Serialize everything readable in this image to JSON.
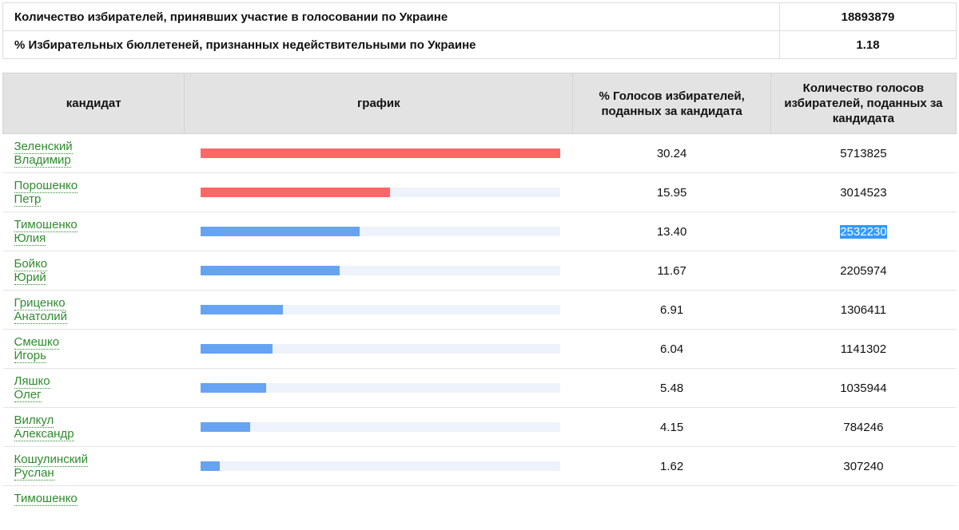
{
  "summary": {
    "voters_label": "Количество избирателей, принявших участие в голосовании по Украине",
    "voters_value": "18893879",
    "invalid_label": "% Избирательных бюллетеней, признанных недействительными по Украине",
    "invalid_value": "1.18"
  },
  "table": {
    "headers": {
      "candidate": "кандидат",
      "graph": "график",
      "percent": "% Голосов избирателей, поданных за кандидата",
      "count": "Количество голосов избирателей, поданных за кандидата"
    },
    "max_percent": 30.24,
    "colors": {
      "leader": "#ff6666",
      "other": "#66a3f2",
      "track": "#eef2fb",
      "link": "#2e8b2e",
      "selection": "#3399ff"
    },
    "rows": [
      {
        "surname": "Зеленский",
        "first_name": "Владимир",
        "percent": "30.24",
        "votes": "5713825",
        "bar_color": "#ff6666",
        "fill": 30.24
      },
      {
        "surname": "Порошенко",
        "first_name": "Петр",
        "percent": "15.95",
        "votes": "3014523",
        "bar_color": "#ff6666",
        "fill": 15.95
      },
      {
        "surname": "Тимошенко",
        "first_name": "Юлия",
        "percent": "13.40",
        "votes": "2532230",
        "bar_color": "#66a3f2",
        "fill": 13.4,
        "votes_selected": true
      },
      {
        "surname": "Бойко",
        "first_name": "Юрий",
        "percent": "11.67",
        "votes": "2205974",
        "bar_color": "#66a3f2",
        "fill": 11.67
      },
      {
        "surname": "Гриценко",
        "first_name": "Анатолий",
        "percent": "6.91",
        "votes": "1306411",
        "bar_color": "#66a3f2",
        "fill": 6.91
      },
      {
        "surname": "Смешко",
        "first_name": "Игорь",
        "percent": "6.04",
        "votes": "1141302",
        "bar_color": "#66a3f2",
        "fill": 6.04
      },
      {
        "surname": "Ляшко",
        "first_name": "Олег",
        "percent": "5.48",
        "votes": "1035944",
        "bar_color": "#66a3f2",
        "fill": 5.48
      },
      {
        "surname": "Вилкул",
        "first_name": "Александр",
        "percent": "4.15",
        "votes": "784246",
        "bar_color": "#66a3f2",
        "fill": 4.15
      },
      {
        "surname": "Кошулинский",
        "first_name": "Руслан",
        "percent": "1.62",
        "votes": "307240",
        "bar_color": "#66a3f2",
        "fill": 1.62
      }
    ],
    "partial_row": {
      "surname": "Тимошенко"
    }
  }
}
